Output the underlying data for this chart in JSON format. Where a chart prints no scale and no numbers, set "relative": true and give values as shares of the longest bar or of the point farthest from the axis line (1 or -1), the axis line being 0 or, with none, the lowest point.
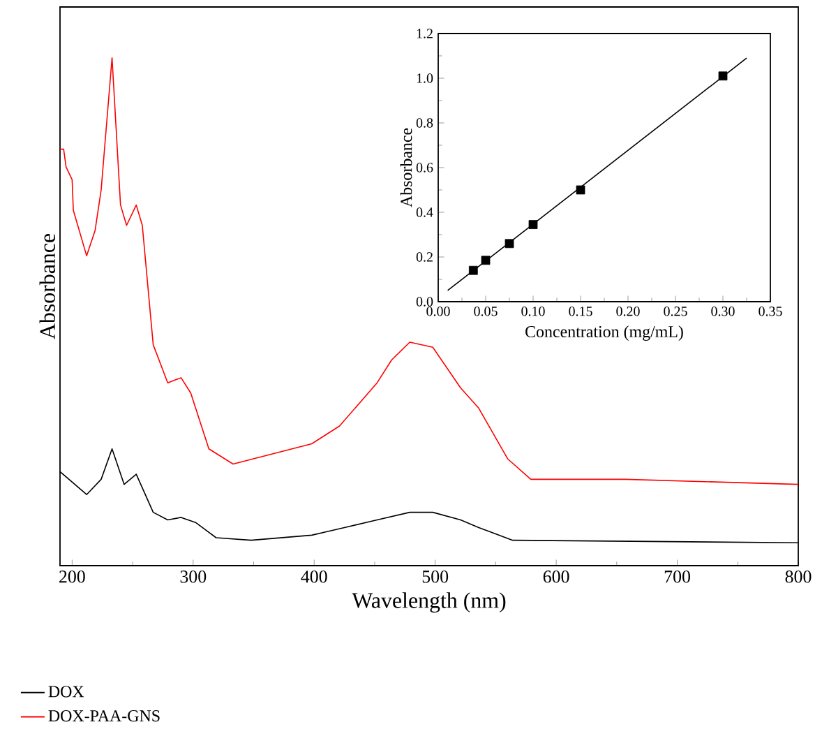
{
  "chart_data": [
    {
      "type": "line",
      "relative": true,
      "xlabel": "Wavelength (nm)",
      "ylabel": "Absorbance",
      "xlim": [
        190,
        800
      ],
      "xticks": [
        200,
        300,
        400,
        500,
        600,
        700,
        800
      ],
      "legend": "bottom",
      "series": [
        {
          "name": "DOX",
          "color": "#000000",
          "x": [
            190,
            212,
            224,
            233,
            243,
            253,
            267,
            279,
            290,
            302,
            319,
            348,
            398,
            425,
            452,
            479,
            498,
            521,
            536,
            564,
            800
          ],
          "values": [
            0.185,
            0.14,
            0.17,
            0.23,
            0.16,
            0.18,
            0.105,
            0.09,
            0.095,
            0.085,
            0.055,
            0.05,
            0.06,
            0.075,
            0.09,
            0.105,
            0.105,
            0.09,
            0.075,
            0.05,
            0.045
          ]
        },
        {
          "name": "DOX-PAA-GNS",
          "color": "#ff0000",
          "x": [
            190,
            193,
            195,
            200,
            201,
            212,
            219,
            224,
            233,
            240,
            245,
            253,
            258,
            267,
            279,
            290,
            298,
            313,
            333,
            398,
            421,
            452,
            464,
            479,
            498,
            521,
            536,
            560,
            579,
            657,
            800
          ],
          "values": [
            0.82,
            0.82,
            0.785,
            0.76,
            0.7,
            0.61,
            0.66,
            0.74,
            1.0,
            0.71,
            0.67,
            0.71,
            0.67,
            0.435,
            0.36,
            0.37,
            0.34,
            0.23,
            0.2,
            0.24,
            0.275,
            0.36,
            0.405,
            0.44,
            0.43,
            0.35,
            0.31,
            0.21,
            0.17,
            0.17,
            0.16
          ]
        }
      ]
    },
    {
      "type": "scatter",
      "xlabel": "Concentration (mg/mL)",
      "ylabel": "Absorbance",
      "xlim": [
        0,
        0.35
      ],
      "ylim": [
        0,
        1.2
      ],
      "marker": "square",
      "xticks": [
        {
          "value": 0,
          "label": "0.00"
        },
        {
          "value": 0.05,
          "label": "0.05"
        },
        {
          "value": 0.1,
          "label": "0.10"
        },
        {
          "value": 0.15,
          "label": "0.15"
        },
        {
          "value": 0.2,
          "label": "0.20"
        },
        {
          "value": 0.25,
          "label": "0.25"
        },
        {
          "value": 0.3,
          "label": "0.30"
        },
        {
          "value": 0.35,
          "label": "0.35"
        }
      ],
      "yticks": [
        {
          "value": 0,
          "label": "0.0"
        },
        {
          "value": 0.2,
          "label": "0.2"
        },
        {
          "value": 0.4,
          "label": "0.4"
        },
        {
          "value": 0.6,
          "label": "0.6"
        },
        {
          "value": 0.8,
          "label": "0.8"
        },
        {
          "value": 1.0,
          "label": "1.0"
        },
        {
          "value": 1.2,
          "label": "1.2"
        }
      ],
      "series": [
        {
          "color": "#000000",
          "x": [
            0.037,
            0.05,
            0.075,
            0.1,
            0.15,
            0.3
          ],
          "values": [
            0.14,
            0.185,
            0.26,
            0.345,
            0.5,
            1.01
          ]
        },
        {
          "type": "line",
          "marker": "none",
          "color": "#000000",
          "x": [
            0.01,
            0.325
          ],
          "values": [
            0.05,
            1.09
          ]
        }
      ]
    }
  ]
}
